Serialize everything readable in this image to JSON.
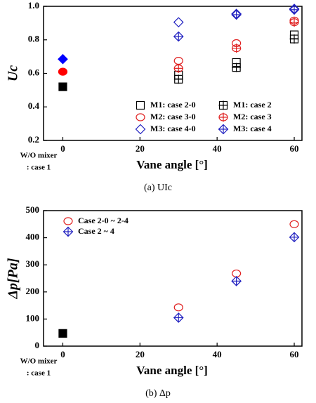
{
  "chart_data": [
    {
      "type": "scatter",
      "y_label": "Uc",
      "x_label": "Vane angle [°]",
      "caption": "(a)  UIc",
      "annotations": [
        "W/O mixer",
        ": case 1"
      ],
      "xlim": [
        -5,
        62
      ],
      "xticks": [
        0,
        20,
        40,
        60
      ],
      "ylim": [
        0.2,
        1.0
      ],
      "yticks": [
        0.2,
        0.4,
        0.6,
        0.8,
        {
          "value": 1.0,
          "label": "1.0"
        }
      ],
      "legend": "lower right",
      "legend_columns": 2,
      "series": [
        {
          "name": "M1: case 2-0",
          "color": "#000000",
          "marker": "square",
          "x": [
            30,
            45,
            60
          ],
          "values": [
            0.59,
            0.665,
            0.83
          ]
        },
        {
          "name": "M1: case 2",
          "color": "#000000",
          "marker": "square-cross",
          "x": [
            30,
            45,
            60
          ],
          "values": [
            0.565,
            0.635,
            0.805
          ]
        },
        {
          "name": "M2: case 3-0",
          "color": "#e02020",
          "marker": "circle",
          "x": [
            30,
            45,
            60
          ],
          "values": [
            0.675,
            0.78,
            0.915
          ]
        },
        {
          "name": "M2: case 3",
          "color": "#e02020",
          "marker": "circle-cross",
          "x": [
            30,
            45,
            60
          ],
          "values": [
            0.63,
            0.75,
            0.905
          ]
        },
        {
          "name": "M3: case 4-0",
          "color": "#2020c0",
          "marker": "diamond",
          "x": [
            30,
            45,
            60
          ],
          "values": [
            0.905,
            0.955,
            0.985
          ]
        },
        {
          "name": "M3: case 4",
          "color": "#2020c0",
          "marker": "diamond-cross",
          "x": [
            30,
            45,
            60
          ],
          "values": [
            0.82,
            0.95,
            0.98
          ]
        },
        {
          "color": "#000000",
          "marker": "square-filled",
          "x": [
            0
          ],
          "values": [
            0.52
          ]
        },
        {
          "color": "#ff0000",
          "marker": "circle-filled",
          "x": [
            0
          ],
          "values": [
            0.61
          ]
        },
        {
          "color": "#0000ff",
          "marker": "diamond-filled",
          "x": [
            0
          ],
          "values": [
            0.685
          ]
        }
      ]
    },
    {
      "type": "scatter",
      "y_label": "Δp[Pa]",
      "x_label": "Vane angle [°]",
      "caption": "(b)  Δp",
      "annotations": [
        "W/O mixer",
        ": case 1"
      ],
      "xlim": [
        -5,
        62
      ],
      "xticks": [
        0,
        20,
        40,
        60
      ],
      "ylim": [
        0,
        500
      ],
      "yticks": [
        0,
        100,
        200,
        300,
        400,
        500
      ],
      "legend": "upper left",
      "legend_columns": 1,
      "series": [
        {
          "name": "Case 2-0 ~ 2-4",
          "color": "#e02020",
          "marker": "circle",
          "x": [
            30,
            45,
            60
          ],
          "values": [
            143,
            268,
            450
          ]
        },
        {
          "name": "Case 2 ~ 4",
          "color": "#2020c0",
          "marker": "diamond-cross",
          "x": [
            30,
            45,
            60
          ],
          "values": [
            105,
            240,
            402
          ]
        },
        {
          "color": "#000000",
          "marker": "square-filled",
          "x": [
            0
          ],
          "values": [
            47
          ]
        }
      ]
    }
  ]
}
